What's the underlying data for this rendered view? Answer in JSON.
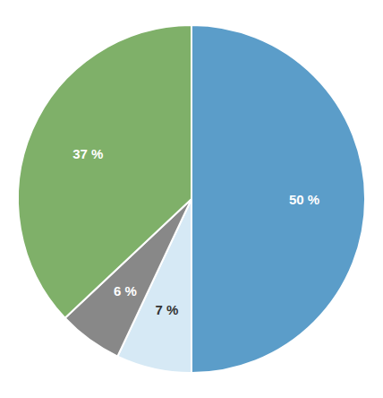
{
  "chart_data": {
    "type": "pie",
    "values": [
      50,
      7,
      6,
      37
    ],
    "value_labels": [
      "50 %",
      "7 %",
      "6 %",
      "37 %"
    ],
    "colors": [
      "#5b9dc9",
      "#d6e9f5",
      "#888888",
      "#7fb069"
    ],
    "data_labels": true
  }
}
